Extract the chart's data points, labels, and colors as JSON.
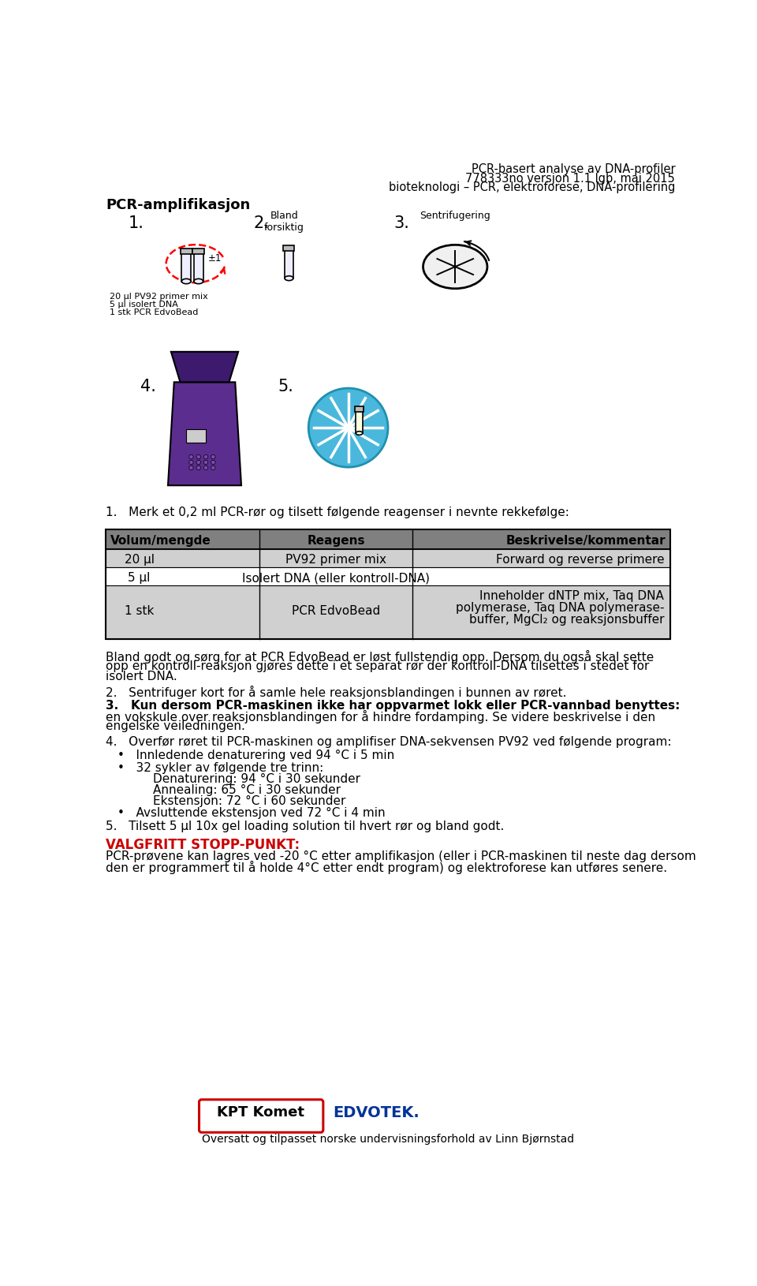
{
  "header_right_line1": "PCR-basert analyse av DNA-profiler",
  "header_right_line2": "778333no versjon 1.1 lgb, mai 2015",
  "header_right_line3": "bioteknologi – PCR, elektroforese, DNA-profilering",
  "section_title": "PCR-amplifikasjon",
  "step_bland": "Bland\nforsiktig",
  "step_sentrifugering": "Sentrifugering",
  "step1_label_line1": "20 µl PV92 primer mix",
  "step1_label_line2": "5 µl isolert DNA",
  "step1_label_line3": "1 stk PCR EdvoBead",
  "instruction1": "1.   Merk et 0,2 ml PCR-rør og tilsett følgende reagenser i nevnte rekkefølge:",
  "table_headers": [
    "Volum/mengde",
    "Reagens",
    "Beskrivelse/kommentar"
  ],
  "table_rows": [
    [
      "20 µl",
      "PV92 primer mix",
      "Forward og reverse primere"
    ],
    [
      "5 µl",
      "Isolert DNA (eller kontroll-DNA)",
      ""
    ],
    [
      "1 stk",
      "PCR EdvoBead",
      "Inneholder dNTP mix, Taq DNA\npolymerase, Taq DNA polymerase-\nbuffer, MgCl₂ og reaksjonsbuffer"
    ]
  ],
  "bland_line1": "Bland godt og sørg for at PCR EdvoBead er løst fullstendig opp. Dersom du også skal sette",
  "bland_line2": "opp en kontroll-reaksjon gjøres dette i et separat rør der kontroll-DNA tilsettes i stedet for",
  "bland_line3": "isolert DNA.",
  "step2_text": "2.   Sentrifuger kort for å samle hele reaksjonsblandingen i bunnen av røret.",
  "step3_bold": "3.   Kun dersom PCR-maskinen ikke har oppvarmet lokk eller PCR-vannbad benyttes:",
  "step3_line2": "en vokskule over reaksjonsblandingen for å hindre fordamping. Se videre beskrivelse i den",
  "step3_line3": "engelske veiledningen.",
  "step4_text": "4.   Overfør røret til PCR-maskinen og amplifiser DNA-sekvensen PV92 ved følgende program:",
  "bullet1": "•   Innledende denaturering ved 94 °C i 5 min",
  "bullet2": "•   32 sykler av følgende tre trinn:",
  "sub1": "Denaturering: 94 °C i 30 sekunder",
  "sub2": "Annealing: 65 °C i 30 sekunder",
  "sub3": "Ekstensjon: 72 °C i 60 sekunder",
  "bullet3": "•   Avsluttende ekstensjon ved 72 °C i 4 min",
  "step5_text": "5.   Tilsett 5 µl 10x gel loading solution til hvert rør og bland godt.",
  "stopp_title": "VALGFRITT STOPP-PUNKT:",
  "stopp_line1": "PCR-prøvene kan lagres ved -20 °C etter amplifikasjon (eller i PCR-maskinen til neste dag dersom",
  "stopp_line2": "den er programmert til å holde 4°C etter endt program) og elektroforese kan utføres senere.",
  "footer_text": "Oversatt og tilpasset norske undervisningsforhold av Linn Bjørnstad",
  "bg_color": "#ffffff",
  "text_color": "#000000",
  "table_header_bg": "#808080",
  "table_row1_bg": "#d0d0d0",
  "table_row2_bg": "#ffffff",
  "table_row3_bg": "#d0d0d0",
  "red_color": "#cc0000",
  "purple_color": "#5b2d8e"
}
